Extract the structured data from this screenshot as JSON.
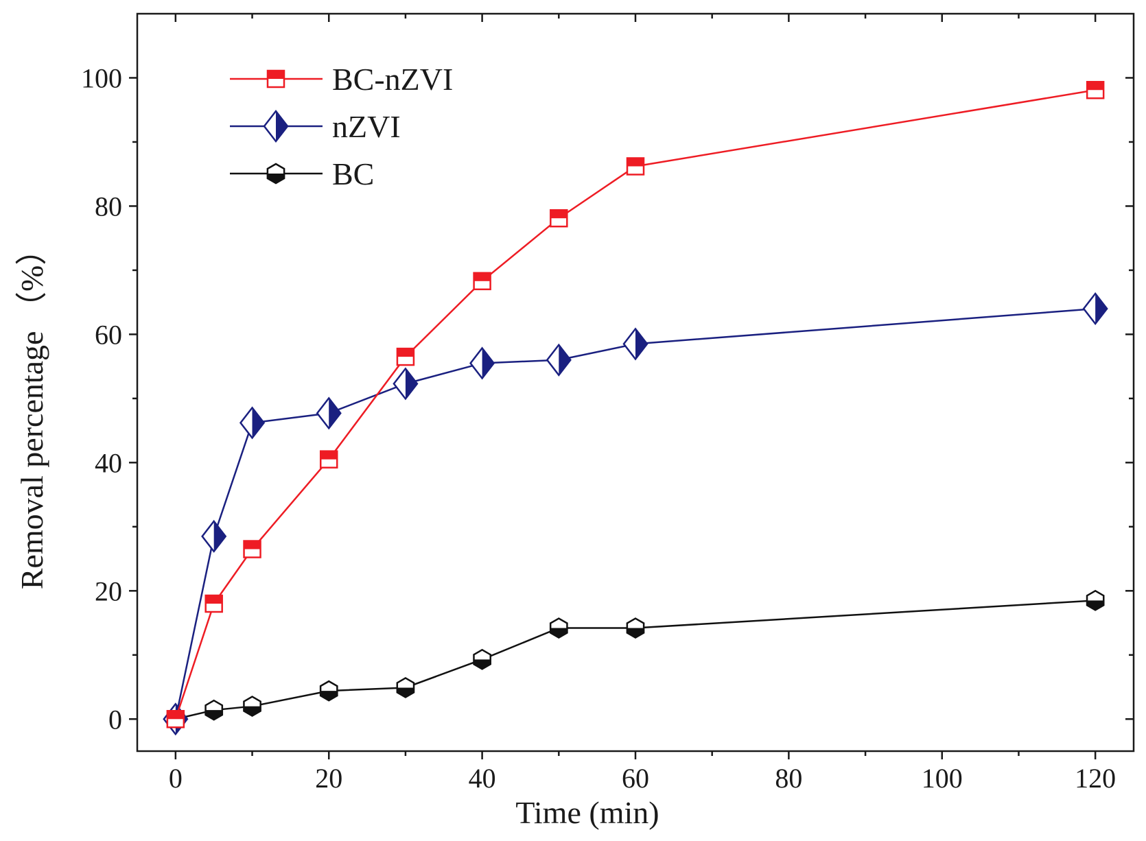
{
  "chart_data": {
    "type": "line",
    "title": "",
    "xlabel": "Time (min)",
    "ylabel": "Removal percentage （%）",
    "xlim": [
      -5,
      125
    ],
    "ylim": [
      -5,
      110
    ],
    "x_ticks": [
      0,
      20,
      40,
      60,
      80,
      100,
      120
    ],
    "x_tick_labels": [
      "0",
      "20",
      "40",
      "60",
      "80",
      "100",
      "120"
    ],
    "y_ticks": [
      0,
      20,
      40,
      60,
      80,
      100
    ],
    "y_tick_labels": [
      "0",
      "20",
      "40",
      "60",
      "80",
      "100"
    ],
    "grid": false,
    "legend_position": "top-left",
    "x": [
      0,
      5,
      10,
      20,
      30,
      40,
      50,
      60,
      120
    ],
    "series": [
      {
        "name": "BC-nZVI",
        "color": "#ee1c24",
        "marker": "square-half",
        "values": [
          0,
          18,
          26.5,
          40.5,
          56.5,
          68.3,
          78.1,
          86.2,
          98.1
        ]
      },
      {
        "name": "nZVI",
        "color": "#1a2080",
        "marker": "diamond-half",
        "values": [
          0,
          28.5,
          46.2,
          47.7,
          52.3,
          55.5,
          56,
          58.5,
          64
        ]
      },
      {
        "name": "BC",
        "color": "#111111",
        "marker": "hexagon-half",
        "values": [
          0,
          1.4,
          2,
          4.4,
          4.9,
          9.3,
          14.2,
          14.2,
          18.5
        ]
      }
    ]
  }
}
